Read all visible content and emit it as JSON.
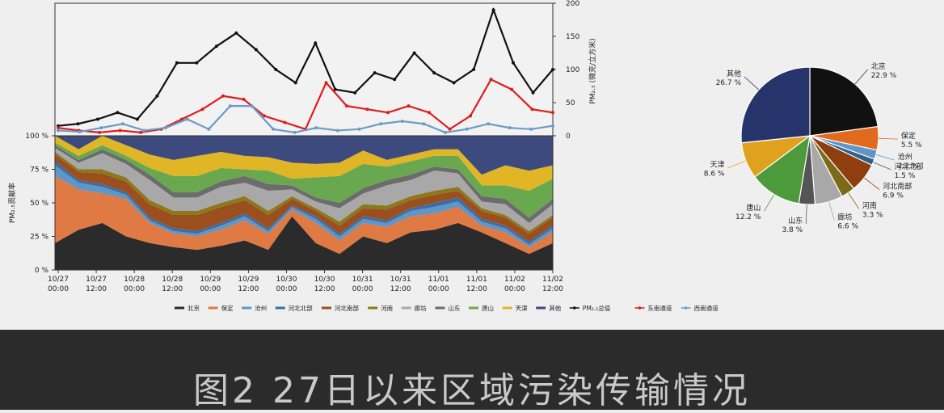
{
  "caption": "图2 27日以来区域污染传输情况",
  "chart_data": [
    {
      "type": "area",
      "subtype": "stacked-percent-with-line-overlay",
      "x_ticks": [
        "10/27\n00:00",
        "10/27\n12:00",
        "10/28\n00:00",
        "10/28\n12:00",
        "10/29\n00:00",
        "10/29\n12:00",
        "10/30\n00:00",
        "10/30\n12:00",
        "10/31\n00:00",
        "10/31\n12:00",
        "11/01\n00:00",
        "11/01\n12:00",
        "11/02\n00:00",
        "11/02\n12:00"
      ],
      "left_axis": {
        "label": "PM₂.₅贡献率",
        "ticks": [
          "0 %",
          "25 %",
          "50 %",
          "75 %",
          "100 %"
        ],
        "ylim": [
          0,
          100
        ]
      },
      "right_axis": {
        "label": "PM₂.₅ (微克/立方米)",
        "ticks": [
          "0",
          "50",
          "100",
          "150",
          "200"
        ],
        "ylim": [
          0,
          200
        ]
      },
      "regions": [
        {
          "name": "北京",
          "color": "#2b2b2b",
          "values": [
            20,
            30,
            35,
            25,
            20,
            17,
            15,
            18,
            22,
            15,
            40,
            20,
            12,
            25,
            20,
            28,
            30,
            35,
            28,
            20,
            12,
            20
          ]
        },
        {
          "name": "保定",
          "color": "#e07a45",
          "values": [
            50,
            30,
            22,
            28,
            15,
            10,
            10,
            12,
            15,
            12,
            5,
            15,
            10,
            10,
            12,
            12,
            12,
            12,
            5,
            8,
            5,
            8
          ]
        },
        {
          "name": "沧州",
          "color": "#5f95c7",
          "values": [
            8,
            5,
            5,
            3,
            2,
            2,
            2,
            3,
            3,
            2,
            2,
            3,
            3,
            3,
            3,
            4,
            5,
            4,
            3,
            3,
            2,
            3
          ]
        },
        {
          "name": "河北北部",
          "color": "#3b6ea5",
          "values": [
            3,
            2,
            2,
            2,
            2,
            2,
            2,
            2,
            2,
            2,
            1,
            2,
            2,
            2,
            2,
            2,
            3,
            3,
            2,
            2,
            2,
            2
          ]
        },
        {
          "name": "河北南部",
          "color": "#9c4f1e",
          "values": [
            5,
            6,
            8,
            8,
            10,
            10,
            12,
            12,
            10,
            10,
            5,
            4,
            6,
            6,
            8,
            6,
            6,
            5,
            6,
            6,
            6,
            6
          ]
        },
        {
          "name": "河南",
          "color": "#8a7a1c",
          "values": [
            2,
            2,
            3,
            3,
            3,
            3,
            3,
            3,
            3,
            3,
            2,
            2,
            3,
            3,
            3,
            3,
            3,
            3,
            2,
            2,
            2,
            2
          ]
        },
        {
          "name": "廊坊",
          "color": "#a8a8a8",
          "values": [
            3,
            5,
            12,
            10,
            15,
            10,
            10,
            12,
            10,
            15,
            5,
            5,
            10,
            8,
            15,
            12,
            15,
            10,
            5,
            8,
            6,
            8
          ]
        },
        {
          "name": "山东",
          "color": "#6c6c6c",
          "values": [
            2,
            2,
            3,
            3,
            4,
            4,
            4,
            4,
            5,
            5,
            3,
            3,
            4,
            4,
            4,
            4,
            3,
            3,
            4,
            4,
            4,
            4
          ]
        },
        {
          "name": "唐山",
          "color": "#6aa84f",
          "values": [
            2,
            3,
            3,
            3,
            5,
            12,
            12,
            10,
            5,
            10,
            5,
            15,
            20,
            18,
            10,
            10,
            8,
            10,
            8,
            10,
            20,
            15
          ]
        },
        {
          "name": "天津",
          "color": "#e0b526",
          "values": [
            5,
            5,
            7,
            8,
            10,
            12,
            15,
            12,
            10,
            10,
            12,
            10,
            10,
            10,
            5,
            5,
            5,
            5,
            8,
            15,
            15,
            10
          ]
        },
        {
          "name": "其他",
          "color": "#3d4a7d",
          "values": [
            0,
            10,
            0,
            0,
            14,
            18,
            15,
            12,
            15,
            16,
            20,
            21,
            20,
            11,
            18,
            14,
            10,
            10,
            29,
            22,
            26,
            22
          ]
        }
      ],
      "lines": [
        {
          "name": "PM₂.₅总值",
          "color": "#111111",
          "values": [
            15,
            18,
            25,
            35,
            25,
            60,
            110,
            110,
            135,
            155,
            130,
            100,
            80,
            140,
            70,
            65,
            95,
            85,
            125,
            95,
            80,
            100,
            190,
            110,
            65,
            100
          ]
        },
        {
          "name": "东南通道",
          "color": "#e01b1b",
          "values": [
            12,
            8,
            5,
            8,
            5,
            10,
            25,
            40,
            60,
            55,
            30,
            20,
            10,
            80,
            45,
            40,
            35,
            45,
            35,
            10,
            30,
            85,
            70,
            40,
            35
          ]
        },
        {
          "name": "西南通道",
          "color": "#6a9cc9",
          "values": [
            8,
            6,
            12,
            18,
            8,
            12,
            25,
            10,
            45,
            45,
            10,
            5,
            12,
            8,
            10,
            18,
            22,
            18,
            5,
            10,
            18,
            12,
            10,
            15
          ]
        }
      ],
      "legend": [
        "北京",
        "保定",
        "沧州",
        "河北北部",
        "河北南部",
        "河南",
        "廊坊",
        "山东",
        "唐山",
        "天津",
        "其他",
        "PM₂.₅总值",
        "东南通道",
        "西南通道"
      ]
    },
    {
      "type": "pie",
      "slices": [
        {
          "name": "北京",
          "value": 22.9,
          "label": "22.9 %",
          "color": "#111111"
        },
        {
          "name": "保定",
          "value": 5.5,
          "label": "5.5 %",
          "color": "#e06a1e"
        },
        {
          "name": "沧州",
          "value": 2.2,
          "label": "2.2 %",
          "color": "#5f95c7"
        },
        {
          "name": "河北北部",
          "value": 1.5,
          "label": "1.5 %",
          "color": "#2f5f8a"
        },
        {
          "name": "河北南部",
          "value": 6.9,
          "label": "6.9 %",
          "color": "#8f3e10"
        },
        {
          "name": "河南",
          "value": 3.3,
          "label": "3.3 %",
          "color": "#7a6a1a"
        },
        {
          "name": "廊坊",
          "value": 6.6,
          "label": "6.6 %",
          "color": "#a8a8a8"
        },
        {
          "name": "山东",
          "value": 3.8,
          "label": "3.8 %",
          "color": "#555555"
        },
        {
          "name": "唐山",
          "value": 12.2,
          "label": "12.2 %",
          "color": "#4c9a3c"
        },
        {
          "name": "天津",
          "value": 8.6,
          "label": "8.6 %",
          "color": "#e0a21e"
        },
        {
          "name": "其他",
          "value": 26.7,
          "label": "26.7 %",
          "color": "#26346b"
        }
      ]
    }
  ]
}
